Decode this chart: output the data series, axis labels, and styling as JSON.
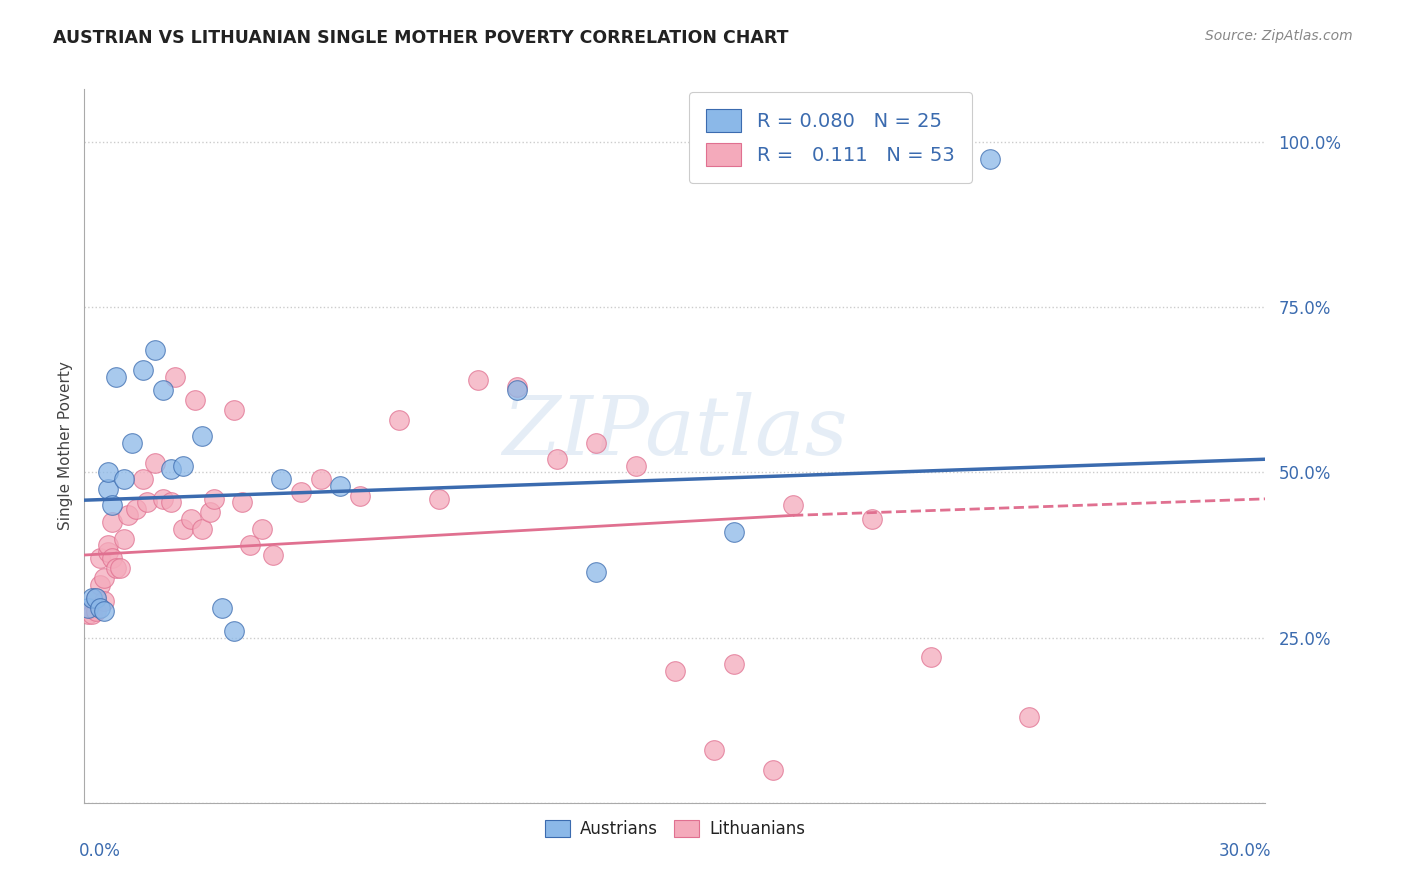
{
  "title": "AUSTRIAN VS LITHUANIAN SINGLE MOTHER POVERTY CORRELATION CHART",
  "source": "Source: ZipAtlas.com",
  "ylabel": "Single Mother Poverty",
  "yticks": [
    0.0,
    0.25,
    0.5,
    0.75,
    1.0
  ],
  "ytick_labels": [
    "",
    "25.0%",
    "50.0%",
    "75.0%",
    "100.0%"
  ],
  "xlim": [
    0.0,
    0.3
  ],
  "ylim": [
    0.0,
    1.08
  ],
  "blue_color": "#8BB8E8",
  "pink_color": "#F4AABB",
  "trend_blue_color": "#3B6BAF",
  "trend_pink_color": "#E07090",
  "watermark": "ZIPatlas",
  "austrians_x": [
    0.001,
    0.002,
    0.003,
    0.004,
    0.005,
    0.006,
    0.006,
    0.007,
    0.008,
    0.01,
    0.012,
    0.015,
    0.018,
    0.02,
    0.022,
    0.025,
    0.03,
    0.035,
    0.038,
    0.05,
    0.065,
    0.11,
    0.165,
    0.23,
    0.13
  ],
  "austrians_y": [
    0.295,
    0.31,
    0.31,
    0.295,
    0.29,
    0.475,
    0.5,
    0.45,
    0.645,
    0.49,
    0.545,
    0.655,
    0.685,
    0.625,
    0.505,
    0.51,
    0.555,
    0.295,
    0.26,
    0.49,
    0.48,
    0.625,
    0.41,
    0.975,
    0.35
  ],
  "lithuanians_x": [
    0.001,
    0.002,
    0.002,
    0.003,
    0.003,
    0.004,
    0.004,
    0.005,
    0.005,
    0.006,
    0.006,
    0.007,
    0.007,
    0.008,
    0.009,
    0.01,
    0.011,
    0.013,
    0.015,
    0.016,
    0.018,
    0.02,
    0.022,
    0.023,
    0.025,
    0.027,
    0.028,
    0.03,
    0.032,
    0.033,
    0.038,
    0.04,
    0.042,
    0.045,
    0.048,
    0.055,
    0.06,
    0.07,
    0.08,
    0.09,
    0.1,
    0.11,
    0.12,
    0.13,
    0.14,
    0.15,
    0.165,
    0.18,
    0.2,
    0.215,
    0.24,
    0.16,
    0.175
  ],
  "lithuanians_y": [
    0.285,
    0.295,
    0.285,
    0.31,
    0.29,
    0.33,
    0.37,
    0.305,
    0.34,
    0.38,
    0.39,
    0.425,
    0.37,
    0.355,
    0.355,
    0.4,
    0.435,
    0.445,
    0.49,
    0.455,
    0.515,
    0.46,
    0.455,
    0.645,
    0.415,
    0.43,
    0.61,
    0.415,
    0.44,
    0.46,
    0.595,
    0.455,
    0.39,
    0.415,
    0.375,
    0.47,
    0.49,
    0.465,
    0.58,
    0.46,
    0.64,
    0.63,
    0.52,
    0.545,
    0.51,
    0.2,
    0.21,
    0.45,
    0.43,
    0.22,
    0.13,
    0.08,
    0.05
  ],
  "background_color": "#FFFFFF",
  "grid_color": "#CCCCCC",
  "trend_blue_x0": 0.0,
  "trend_blue_y0": 0.458,
  "trend_blue_x1": 0.3,
  "trend_blue_y1": 0.52,
  "trend_pink_x0": 0.0,
  "trend_pink_y0": 0.375,
  "trend_pink_x1": 0.18,
  "trend_pink_y1": 0.435,
  "trend_pink_dash_x0": 0.18,
  "trend_pink_dash_y0": 0.435,
  "trend_pink_dash_x1": 0.3,
  "trend_pink_dash_y1": 0.46
}
